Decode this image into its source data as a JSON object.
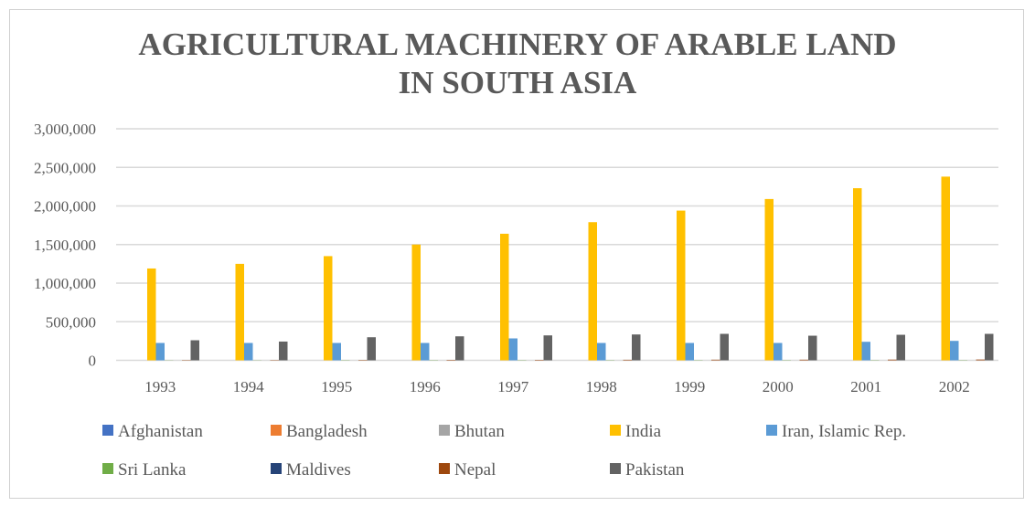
{
  "chart_data": {
    "type": "bar",
    "title_lines": [
      "AGRICULTURAL MACHINERY OF ARABLE LAND",
      "IN SOUTH ASIA"
    ],
    "categories": [
      "1993",
      "1994",
      "1995",
      "1996",
      "1997",
      "1998",
      "1999",
      "2000",
      "2001",
      "2002"
    ],
    "ylim": [
      0,
      3000000
    ],
    "yticks": [
      0,
      500000,
      1000000,
      1500000,
      2000000,
      2500000,
      3000000
    ],
    "ytick_labels": [
      "0",
      "500,000",
      "1,000,000",
      "1,500,000",
      "2,000,000",
      "2,500,000",
      "3,000,000"
    ],
    "grid": true,
    "legend_position": "bottom",
    "series": [
      {
        "name": "Afghanistan",
        "color": "#4472C4",
        "values": [
          0,
          0,
          0,
          0,
          0,
          0,
          0,
          0,
          0,
          0
        ]
      },
      {
        "name": "Bangladesh",
        "color": "#ED7D31",
        "values": [
          0,
          0,
          0,
          0,
          0,
          0,
          0,
          0,
          0,
          0
        ]
      },
      {
        "name": "Bhutan",
        "color": "#A5A5A5",
        "values": [
          0,
          0,
          0,
          0,
          0,
          0,
          0,
          0,
          0,
          0
        ]
      },
      {
        "name": "India",
        "color": "#FFC000",
        "values": [
          1190000,
          1250000,
          1350000,
          1500000,
          1640000,
          1790000,
          1940000,
          2090000,
          2230000,
          2380000
        ]
      },
      {
        "name": "Iran, Islamic Rep.",
        "color": "#5B9BD5",
        "values": [
          225000,
          225000,
          225000,
          225000,
          284000,
          225000,
          225000,
          225000,
          240000,
          252000
        ]
      },
      {
        "name": "Sri Lanka",
        "color": "#70AD47",
        "values": [
          2000,
          2000,
          3000,
          3000,
          3000,
          3000,
          3000,
          3000,
          3000,
          3000
        ]
      },
      {
        "name": "Maldives",
        "color": "#264478",
        "values": [
          0,
          0,
          0,
          0,
          0,
          0,
          0,
          0,
          0,
          0
        ]
      },
      {
        "name": "Nepal",
        "color": "#9E480E",
        "values": [
          4000,
          4000,
          5000,
          6000,
          6000,
          7000,
          8000,
          8000,
          9000,
          10000
        ]
      },
      {
        "name": "Pakistan",
        "color": "#636363",
        "values": [
          260000,
          243000,
          299000,
          311000,
          323000,
          335000,
          343000,
          319000,
          331000,
          343000
        ]
      }
    ]
  }
}
